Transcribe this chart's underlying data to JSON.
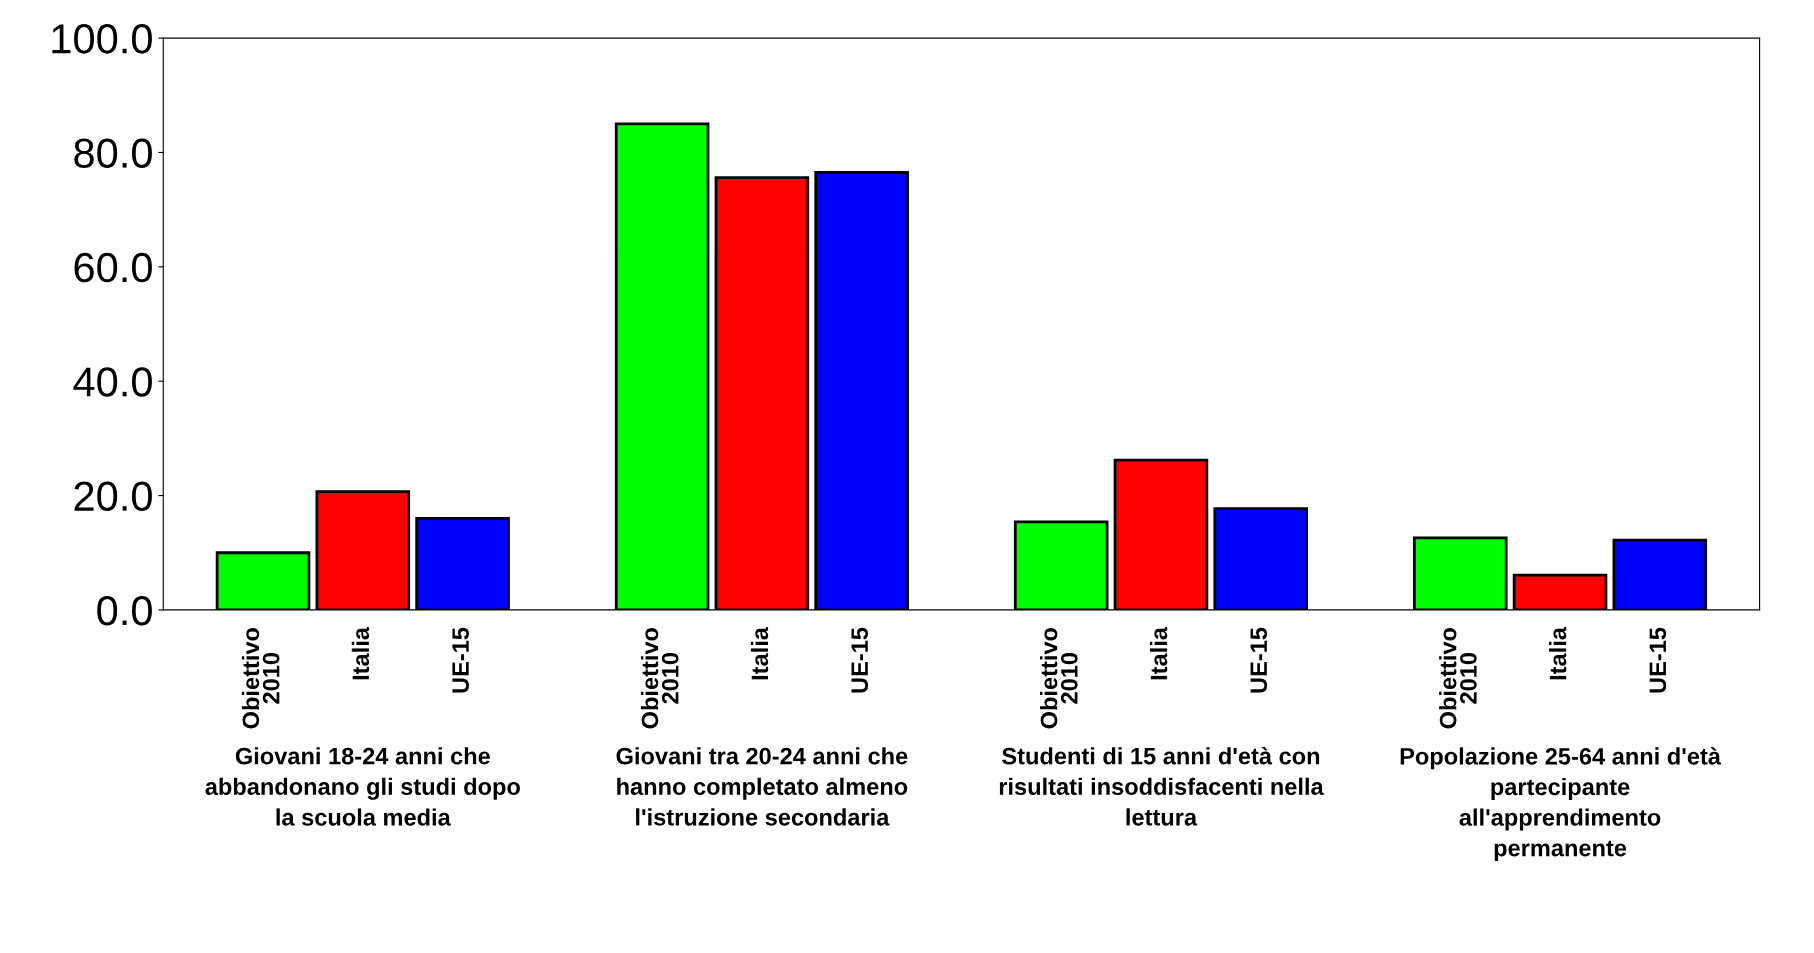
{
  "chart_data": {
    "type": "bar",
    "categories": [
      "Giovani 18-24 anni che abbandonano gli studi dopo la scuola media",
      "Giovani tra 20-24 anni che hanno completato almeno l'istruzione secondaria",
      "Studenti di 15 anni d'età con risultati insoddisfacenti nella lettura",
      "Popolazione 25-64 anni d'età partecipante all'apprendimento permanente"
    ],
    "series": [
      {
        "name": "Obiettivo 2010",
        "color": "#00ff00",
        "values": [
          10.0,
          85.0,
          15.4,
          12.6
        ]
      },
      {
        "name": "Italia",
        "color": "#ff0000",
        "values": [
          20.7,
          75.6,
          26.2,
          6.1
        ]
      },
      {
        "name": "UE-15",
        "color": "#0000ff",
        "values": [
          16.0,
          76.5,
          17.7,
          12.2
        ]
      }
    ],
    "ylim": [
      0,
      100
    ],
    "yticks": [
      {
        "value": 0,
        "label": "0.0"
      },
      {
        "value": 20,
        "label": "20.0"
      },
      {
        "value": 40,
        "label": "40.0"
      },
      {
        "value": 60,
        "label": "60.0"
      },
      {
        "value": 80,
        "label": "80.0"
      },
      {
        "value": 100,
        "label": "100.0"
      }
    ],
    "grid": false,
    "legend": false
  }
}
